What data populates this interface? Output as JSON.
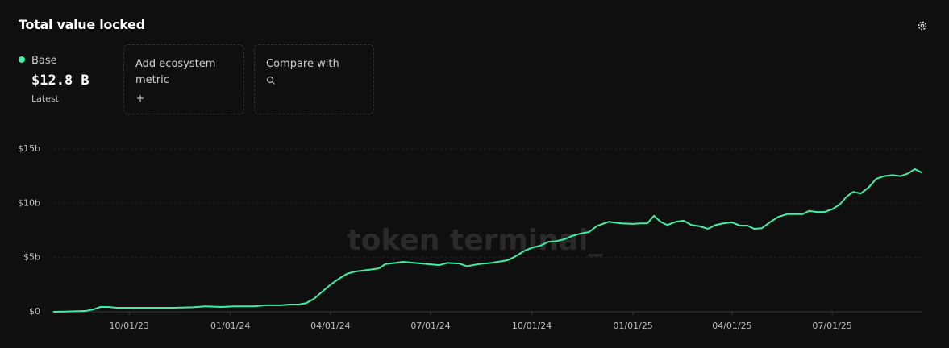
{
  "header": {
    "title": "Total value locked",
    "latest_value": "$12.8 B",
    "latest_label": "Latest",
    "cards": [
      "Add ecosystem metric",
      "Compare with"
    ]
  },
  "chart_data": {
    "type": "line",
    "watermark": "token terminal_",
    "x": [
      "2023-07-24",
      "2023-08-03",
      "2023-08-22",
      "2023-08-29",
      "2023-09-05",
      "2023-09-11",
      "2023-09-20",
      "2023-10-04",
      "2023-10-23",
      "2023-11-10",
      "2023-11-28",
      "2023-12-09",
      "2023-12-24",
      "2024-01-04",
      "2024-01-22",
      "2024-02-02",
      "2024-02-16",
      "2024-02-24",
      "2024-03-03",
      "2024-03-10",
      "2024-03-17",
      "2024-03-25",
      "2024-04-01",
      "2024-04-08",
      "2024-04-16",
      "2024-04-23",
      "2024-04-30",
      "2024-05-08",
      "2024-05-15",
      "2024-05-21",
      "2024-05-30",
      "2024-06-06",
      "2024-06-17",
      "2024-06-28",
      "2024-07-09",
      "2024-07-16",
      "2024-07-27",
      "2024-08-03",
      "2024-08-14",
      "2024-08-25",
      "2024-09-09",
      "2024-09-16",
      "2024-09-24",
      "2024-10-01",
      "2024-10-09",
      "2024-10-16",
      "2024-10-23",
      "2024-10-31",
      "2024-11-07",
      "2024-11-14",
      "2024-11-22",
      "2024-11-29",
      "2024-12-10",
      "2024-12-21",
      "2025-01-01",
      "2025-01-08",
      "2025-01-14",
      "2025-01-20",
      "2025-01-26",
      "2025-02-01",
      "2025-02-09",
      "2025-02-16",
      "2025-02-23",
      "2025-03-02",
      "2025-03-10",
      "2025-03-17",
      "2025-03-24",
      "2025-04-01",
      "2025-04-08",
      "2025-04-15",
      "2025-04-21",
      "2025-04-28",
      "2025-05-06",
      "2025-05-13",
      "2025-05-21",
      "2025-05-28",
      "2025-06-04",
      "2025-06-10",
      "2025-06-17",
      "2025-06-24",
      "2025-07-01",
      "2025-07-08",
      "2025-07-14",
      "2025-07-20",
      "2025-07-27",
      "2025-08-03",
      "2025-08-10",
      "2025-08-17",
      "2025-08-25",
      "2025-09-01",
      "2025-09-08",
      "2025-09-14",
      "2025-09-21"
    ],
    "series": [
      {
        "name": "Base",
        "color": "#3ef0a6",
        "values": [
          0,
          0.02,
          0.07,
          0.2,
          0.45,
          0.45,
          0.37,
          0.37,
          0.37,
          0.37,
          0.42,
          0.5,
          0.45,
          0.5,
          0.5,
          0.6,
          0.6,
          0.67,
          0.67,
          0.8,
          1.2,
          1.9,
          2.5,
          3.0,
          3.5,
          3.7,
          3.8,
          3.9,
          4.0,
          4.4,
          4.5,
          4.6,
          4.5,
          4.4,
          4.3,
          4.5,
          4.45,
          4.2,
          4.4,
          4.5,
          4.75,
          5.1,
          5.6,
          5.9,
          6.1,
          6.45,
          6.5,
          6.7,
          7.0,
          7.2,
          7.35,
          7.9,
          8.3,
          8.15,
          8.1,
          8.15,
          8.15,
          8.85,
          8.3,
          8.0,
          8.3,
          8.4,
          8.0,
          7.9,
          7.65,
          8.0,
          8.15,
          8.25,
          7.95,
          7.95,
          7.65,
          7.7,
          8.3,
          8.75,
          9.0,
          9.0,
          9.0,
          9.3,
          9.2,
          9.2,
          9.45,
          9.9,
          10.6,
          11.05,
          10.9,
          11.45,
          12.25,
          12.5,
          12.6,
          12.5,
          12.75,
          13.15,
          12.8
        ]
      }
    ],
    "xlim": [
      "2023-07-24",
      "2025-09-21"
    ],
    "xticks": [
      {
        "value": "2023-10-01",
        "label": "10/01/23"
      },
      {
        "value": "2024-01-01",
        "label": "01/01/24"
      },
      {
        "value": "2024-04-01",
        "label": "04/01/24"
      },
      {
        "value": "2024-07-01",
        "label": "07/01/24"
      },
      {
        "value": "2024-10-01",
        "label": "10/01/24"
      },
      {
        "value": "2025-01-01",
        "label": "01/01/25"
      },
      {
        "value": "2025-04-01",
        "label": "04/01/25"
      },
      {
        "value": "2025-07-01",
        "label": "07/01/25"
      }
    ],
    "ylim": [
      0,
      15
    ],
    "yticks": [
      {
        "value": 0,
        "label": "$0"
      },
      {
        "value": 5,
        "label": "$5b"
      },
      {
        "value": 10,
        "label": "$10b"
      },
      {
        "value": 15,
        "label": "$15b"
      }
    ],
    "grid": true
  }
}
